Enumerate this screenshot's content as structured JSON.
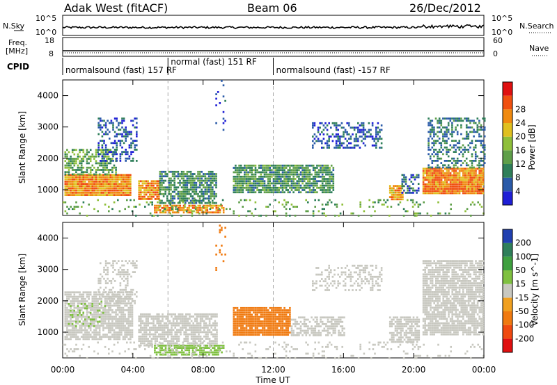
{
  "header": {
    "radar": "Adak West (fitACF)",
    "beam": "Beam 06",
    "date": "26/Dec/2012"
  },
  "noise_panel": {
    "left_label": "N.Sky",
    "right_label": "N.Search",
    "left_ticks": [
      "10^5",
      "10^0"
    ],
    "right_ticks": [
      "10^5",
      "10^0"
    ]
  },
  "freq_panel": {
    "left_label_line1": "Freq.",
    "left_label_line2": "[MHz]",
    "left_ticks": [
      "18",
      "8"
    ],
    "right_label": "Nave",
    "right_ticks": [
      "60",
      "0"
    ]
  },
  "cpid": {
    "label": "CPID",
    "segments": [
      {
        "start_h": 0,
        "end_h": 6,
        "text": "normalsound (fast) 157 RF"
      },
      {
        "start_h": 6,
        "end_h": 12,
        "text": "normal (fast) 151 RF"
      },
      {
        "start_h": 12,
        "end_h": 24,
        "text": "normalsound (fast) -157 RF"
      }
    ]
  },
  "colors": {
    "power": [
      "#1f1fd6",
      "#2a5aa8",
      "#2f7f5a",
      "#5f9f4a",
      "#8fbf3a",
      "#e0c020",
      "#f08a10",
      "#f05010",
      "#e01010"
    ],
    "velocity": [
      "#e01010",
      "#f04a10",
      "#f07a10",
      "#f0a020",
      "#c8c8c0",
      "#7fc040",
      "#3fa040",
      "#2f7f5a",
      "#2040b0"
    ]
  },
  "chart_data": [
    {
      "type": "heatmap",
      "name": "power",
      "ylabel": "Slant Range [km]",
      "x_range_h": [
        0,
        24
      ],
      "ylim": [
        180,
        4500
      ],
      "y_ticks": [
        1000,
        2000,
        3000,
        4000
      ],
      "colorbar": {
        "label": "Power [dB]",
        "ticks": [
          "4",
          "8",
          "12",
          "16",
          "20",
          "24",
          "28"
        ]
      },
      "regions": [
        {
          "x": [
            0.1,
            3.9
          ],
          "y": [
            800,
            1500
          ],
          "value": 26,
          "density": 0.97
        },
        {
          "x": [
            0.1,
            3.0
          ],
          "y": [
            1500,
            2300
          ],
          "value": 14,
          "density": 0.6
        },
        {
          "x": [
            2.0,
            4.2
          ],
          "y": [
            1900,
            3300
          ],
          "value": 6,
          "density": 0.4
        },
        {
          "x": [
            4.3,
            5.5
          ],
          "y": [
            700,
            1300
          ],
          "value": 25,
          "density": 0.9
        },
        {
          "x": [
            5.5,
            8.8
          ],
          "y": [
            600,
            1600
          ],
          "value": 11,
          "density": 0.75
        },
        {
          "x": [
            5.2,
            9.2
          ],
          "y": [
            250,
            520
          ],
          "value": 26,
          "density": 0.8
        },
        {
          "x": [
            8.7,
            9.3
          ],
          "y": [
            2900,
            4500
          ],
          "value": 4,
          "density": 0.12
        },
        {
          "x": [
            9.7,
            15.4
          ],
          "y": [
            900,
            1800
          ],
          "value": 12,
          "density": 0.85
        },
        {
          "x": [
            14.2,
            18.2
          ],
          "y": [
            2300,
            3150
          ],
          "value": 6,
          "density": 0.4
        },
        {
          "x": [
            18.6,
            19.4
          ],
          "y": [
            700,
            1150
          ],
          "value": 24,
          "density": 0.9
        },
        {
          "x": [
            19.3,
            20.3
          ],
          "y": [
            900,
            1500
          ],
          "value": 8,
          "density": 0.55
        },
        {
          "x": [
            20.5,
            24.0
          ],
          "y": [
            900,
            1700
          ],
          "value": 27,
          "density": 0.95
        },
        {
          "x": [
            20.8,
            24.0
          ],
          "y": [
            1700,
            3300
          ],
          "value": 9,
          "density": 0.45
        },
        {
          "x": [
            0.0,
            24.0
          ],
          "y": [
            180,
            700
          ],
          "value": 14,
          "density": 0.12
        }
      ]
    },
    {
      "type": "heatmap",
      "name": "velocity",
      "ylabel": "Slant Range [km]",
      "xlabel": "Time UT",
      "x_range_h": [
        0,
        24
      ],
      "ylim": [
        180,
        4500
      ],
      "y_ticks": [
        1000,
        2000,
        3000,
        4000
      ],
      "x_ticks": [
        "00:00",
        "04:00",
        "08:00",
        "12:00",
        "16:00",
        "20:00",
        "00:00"
      ],
      "colorbar": {
        "label": "Velocity [m s^-1]",
        "ticks": [
          "200",
          "100",
          "50",
          "15",
          "-15",
          "-50",
          "-100",
          "-200"
        ]
      },
      "regions": [
        {
          "x": [
            0.1,
            4.0
          ],
          "y": [
            800,
            2300
          ],
          "value": 0,
          "density": 0.8
        },
        {
          "x": [
            0.3,
            2.5
          ],
          "y": [
            1200,
            2000
          ],
          "value": 30,
          "density": 0.15
        },
        {
          "x": [
            2.0,
            4.2
          ],
          "y": [
            1900,
            3300
          ],
          "value": 0,
          "density": 0.35
        },
        {
          "x": [
            4.3,
            8.8
          ],
          "y": [
            600,
            1600
          ],
          "value": 0,
          "density": 0.75
        },
        {
          "x": [
            5.2,
            9.2
          ],
          "y": [
            250,
            600
          ],
          "value": 30,
          "density": 0.7
        },
        {
          "x": [
            8.7,
            9.3
          ],
          "y": [
            2900,
            4500
          ],
          "value": -60,
          "density": 0.1
        },
        {
          "x": [
            9.7,
            13.0
          ],
          "y": [
            900,
            1800
          ],
          "value": -60,
          "density": 0.9
        },
        {
          "x": [
            13.0,
            16.0
          ],
          "y": [
            900,
            1500
          ],
          "value": 0,
          "density": 0.6
        },
        {
          "x": [
            14.2,
            18.2
          ],
          "y": [
            2300,
            3150
          ],
          "value": 0,
          "density": 0.35
        },
        {
          "x": [
            18.6,
            20.3
          ],
          "y": [
            700,
            1500
          ],
          "value": 0,
          "density": 0.75
        },
        {
          "x": [
            20.5,
            24.0
          ],
          "y": [
            900,
            3300
          ],
          "value": 0,
          "density": 0.8
        },
        {
          "x": [
            0.0,
            24.0
          ],
          "y": [
            180,
            700
          ],
          "value": 0,
          "density": 0.12
        }
      ]
    }
  ]
}
